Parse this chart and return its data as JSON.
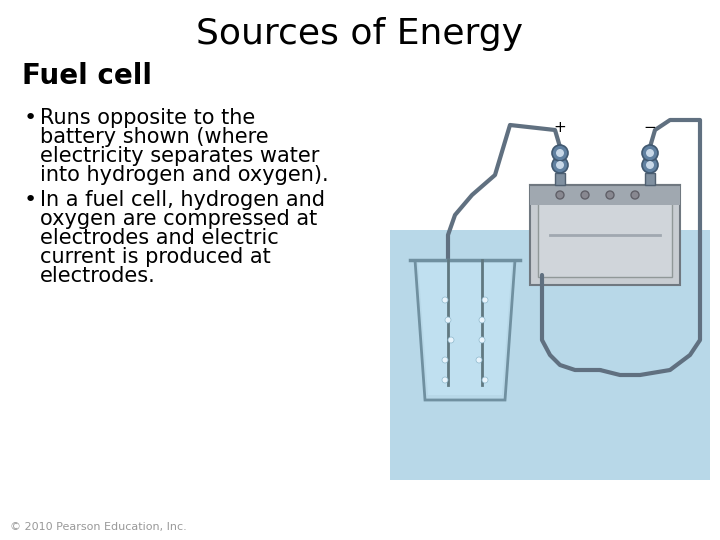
{
  "title": "Sources of Energy",
  "subtitle": "Fuel cell",
  "bullet1_line1": "Runs opposite to the",
  "bullet1_line2": "battery shown (where",
  "bullet1_line3": "electricity separates water",
  "bullet1_line4": "into hydrogen and oxygen).",
  "bullet2_line1": "In a fuel cell, hydrogen and",
  "bullet2_line2": "oxygen are compressed at",
  "bullet2_line3": "electrodes and electric",
  "bullet2_line4": "current is produced at",
  "bullet2_line5": "electrodes.",
  "footer": "© 2010 Pearson Education, Inc.",
  "bg_color": "#ffffff",
  "title_fontsize": 26,
  "subtitle_fontsize": 20,
  "bullet_fontsize": 15,
  "footer_fontsize": 8,
  "image_bg_color": "#b8d8e8",
  "battery_body_color": "#c8cdd2",
  "battery_face_color": "#d0d5da",
  "battery_top_color": "#a0a8b0",
  "wire_color": "#607080",
  "beaker_water_color": "#c0e0f0",
  "beaker_outline_color": "#7090a0",
  "bubble_color": "#e8f4fc"
}
